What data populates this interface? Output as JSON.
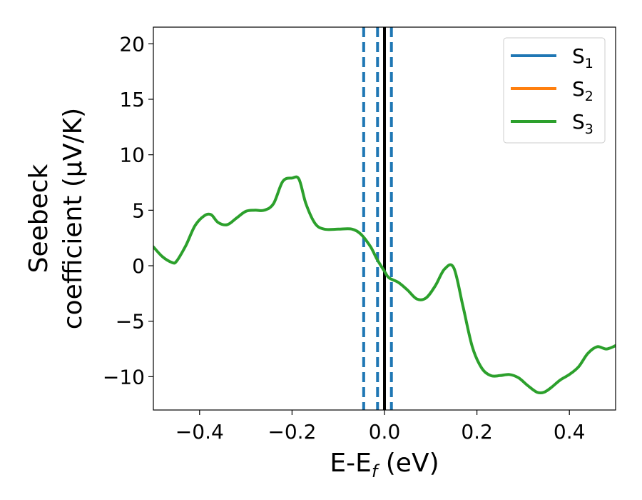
{
  "chart_data": {
    "type": "line",
    "xlabel": "E-E",
    "xlabel_sub": "f",
    "xlabel_unit": " (eV)",
    "ylabel_line1": "Seebeck",
    "ylabel_line2": "coefficient  (μV/K)",
    "xlim": [
      -0.5,
      0.5
    ],
    "ylim": [
      -13,
      21.5
    ],
    "x_ticks": [
      -0.4,
      -0.2,
      0.0,
      0.2,
      0.4
    ],
    "x_tick_labels": [
      "−0.4",
      "−0.2",
      "0.0",
      "0.2",
      "0.4"
    ],
    "y_ticks": [
      -10,
      -5,
      0,
      5,
      10,
      15,
      20
    ],
    "y_tick_labels": [
      "−10",
      "−5",
      "0",
      "5",
      "10",
      "15",
      "20"
    ],
    "grid": false,
    "legend_position": "top-right",
    "series": [
      {
        "name": "S",
        "sub": "1",
        "color": "#1f77b4"
      },
      {
        "name": "S",
        "sub": "2",
        "color": "#ff7f0e"
      },
      {
        "name": "S",
        "sub": "3",
        "color": "#2ca02c"
      }
    ],
    "curve": {
      "x": [
        -0.5,
        -0.48,
        -0.46,
        -0.45,
        -0.43,
        -0.41,
        -0.39,
        -0.375,
        -0.36,
        -0.34,
        -0.32,
        -0.3,
        -0.28,
        -0.26,
        -0.24,
        -0.22,
        -0.2,
        -0.185,
        -0.17,
        -0.15,
        -0.13,
        -0.1,
        -0.07,
        -0.05,
        -0.03,
        -0.015,
        0.0,
        0.01,
        0.03,
        0.05,
        0.07,
        0.09,
        0.11,
        0.13,
        0.15,
        0.17,
        0.19,
        0.21,
        0.23,
        0.25,
        0.27,
        0.29,
        0.31,
        0.33,
        0.345,
        0.36,
        0.38,
        0.4,
        0.42,
        0.44,
        0.46,
        0.48,
        0.5
      ],
      "y": [
        1.7,
        0.8,
        0.3,
        0.4,
        1.8,
        3.6,
        4.5,
        4.6,
        3.9,
        3.7,
        4.3,
        4.9,
        5.0,
        5.0,
        5.6,
        7.6,
        7.9,
        7.8,
        5.6,
        3.8,
        3.3,
        3.3,
        3.3,
        2.8,
        1.7,
        0.5,
        -0.5,
        -1.1,
        -1.5,
        -2.2,
        -3.0,
        -2.9,
        -1.8,
        -0.3,
        -0.2,
        -3.7,
        -7.3,
        -9.2,
        -9.9,
        -9.9,
        -9.8,
        -10.1,
        -10.8,
        -11.4,
        -11.4,
        -11.0,
        -10.3,
        -9.8,
        -9.1,
        -7.9,
        -7.3,
        -7.5,
        -7.2
      ],
      "color": "#2ca02c"
    },
    "vlines": [
      {
        "x": -0.045,
        "style": "dashed",
        "color": "#1f77b4"
      },
      {
        "x": -0.015,
        "style": "dashed",
        "color": "#1f77b4"
      },
      {
        "x": 0.0,
        "style": "solid",
        "color": "#000000"
      },
      {
        "x": 0.015,
        "style": "dashed",
        "color": "#1f77b4"
      }
    ]
  }
}
